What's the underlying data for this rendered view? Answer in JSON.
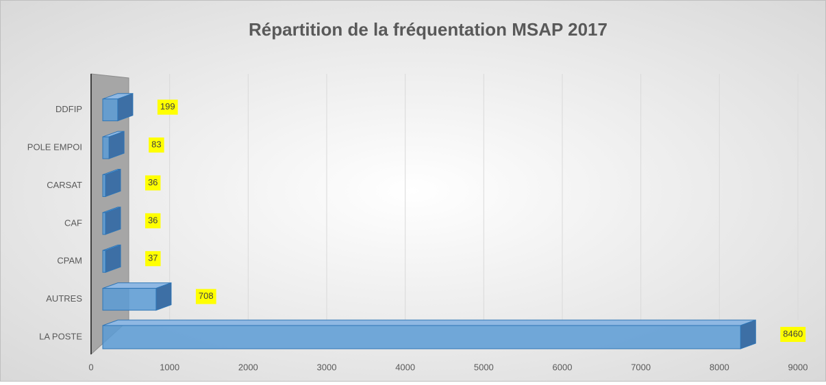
{
  "chart_data": {
    "type": "bar3d",
    "title": "Répartition de la fréquentation MSAP 2017",
    "categories": [
      "LA POSTE",
      "AUTRES",
      "CPAM",
      "CAF",
      "CARSAT",
      "POLE EMPOI",
      "DDFIP"
    ],
    "values": [
      8460,
      708,
      37,
      36,
      36,
      83,
      199
    ],
    "color": "#5b9bd5",
    "xlim": [
      0,
      9000
    ],
    "xticks": [
      0,
      1000,
      2000,
      3000,
      4000,
      5000,
      6000,
      7000,
      8000,
      9000
    ],
    "grid": true
  }
}
